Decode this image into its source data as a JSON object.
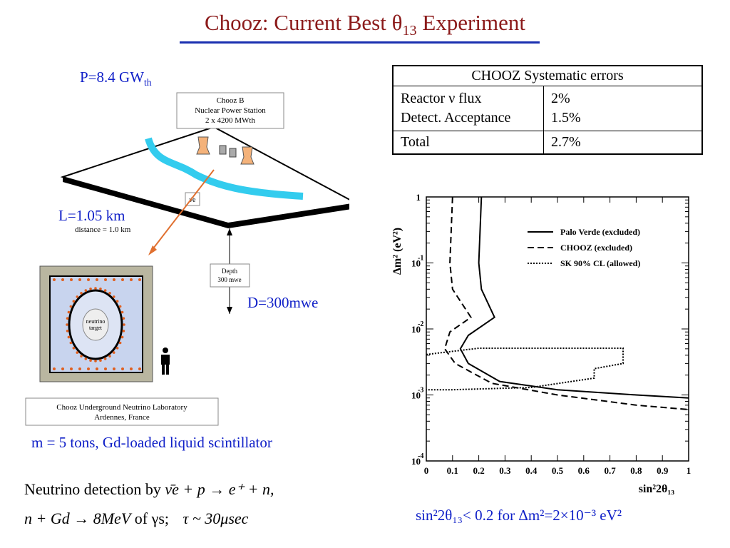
{
  "title": {
    "main": "Chooz: Current Best θ",
    "sub": "13",
    "tail": " Experiment"
  },
  "power": {
    "main": "P=8.4 GW",
    "sub": "th"
  },
  "distance": "L=1.05 km",
  "depth": "D=300mwe",
  "mass": "m = 5 tons, Gd-loaded liquid scintillator",
  "diagram": {
    "station_lines": [
      "Chooz B",
      "Nuclear Power Station",
      "2 x 4200 MWth"
    ],
    "distance_text": "distance = 1.0 km",
    "depth_lines": [
      "Depth",
      "300 mwe"
    ],
    "target_lines": [
      "neutrino",
      "target"
    ],
    "lab_lines": [
      "Chooz Underground Neutrino Laboratory",
      "Ardennes, France"
    ],
    "nubar_symbol": "ν̄e"
  },
  "table": {
    "header": "CHOOZ Systematic errors",
    "rows": [
      {
        "label": "Reactor ν flux",
        "value": "2%"
      },
      {
        "label": "Detect. Acceptance",
        "value": "1.5%"
      }
    ],
    "total": {
      "label": "Total",
      "value": "2.7%"
    }
  },
  "detection": {
    "line1_prefix": "Neutrino detection by",
    "line1_eq": "ν̄e + p → e⁺ + n,",
    "line2_eq": "n + Gd → 8MeV",
    "line2_of": "of γs;",
    "line2_tau": "τ ~ 30μsec"
  },
  "caption": "sin²2θ₁₃< 0.2 for Δm²=2×10⁻³ eV²",
  "chart_data": {
    "type": "line",
    "xlabel": "sin²2θ₁₃",
    "ylabel": "Δm² (eV²)",
    "xlim": [
      0,
      1
    ],
    "ylim": [
      0.0001,
      1
    ],
    "y_scale": "log",
    "x_ticks": [
      "0",
      "0.1",
      "0.2",
      "0.3",
      "0.4",
      "0.5",
      "0.6",
      "0.7",
      "0.8",
      "0.9",
      "1"
    ],
    "y_ticks": [
      {
        "base": "1",
        "exp": ""
      },
      {
        "base": "10",
        "exp": "-1"
      },
      {
        "base": "10",
        "exp": "-2"
      },
      {
        "base": "10",
        "exp": "-3"
      },
      {
        "base": "10",
        "exp": "-4"
      }
    ],
    "legend_position": "top-right",
    "series": [
      {
        "name": "Palo Verde (excluded)",
        "style": "solid",
        "points": [
          [
            0.21,
            1
          ],
          [
            0.2,
            0.1
          ],
          [
            0.21,
            0.04
          ],
          [
            0.26,
            0.015
          ],
          [
            0.16,
            0.008
          ],
          [
            0.13,
            0.005
          ],
          [
            0.16,
            0.003
          ],
          [
            0.28,
            0.0016
          ],
          [
            0.5,
            0.0012
          ],
          [
            0.8,
            0.001
          ],
          [
            1,
            0.0009
          ]
        ]
      },
      {
        "name": "CHOOZ (excluded)",
        "style": "dashed",
        "points": [
          [
            0.1,
            1
          ],
          [
            0.09,
            0.1
          ],
          [
            0.1,
            0.04
          ],
          [
            0.17,
            0.015
          ],
          [
            0.09,
            0.009
          ],
          [
            0.07,
            0.005
          ],
          [
            0.11,
            0.003
          ],
          [
            0.25,
            0.0015
          ],
          [
            0.5,
            0.001
          ],
          [
            0.8,
            0.0007
          ],
          [
            1,
            0.0006
          ]
        ]
      },
      {
        "name": "SK 90% CL (allowed)",
        "style": "dotted",
        "points": [
          [
            0.0,
            0.0041
          ],
          [
            0.2,
            0.0051
          ],
          [
            0.75,
            0.0051
          ],
          [
            0.75,
            0.003
          ],
          [
            0.64,
            0.0025
          ],
          [
            0.64,
            0.0018
          ],
          [
            0.4,
            0.0013
          ],
          [
            0.1,
            0.0012
          ],
          [
            0.0,
            0.0012
          ]
        ]
      }
    ]
  },
  "colors": {
    "title": "#8b1a1a",
    "accent_blue": "#1020c8",
    "river": "#33ccee",
    "beam": "#e07030",
    "detector_wall": "#b9b6a0"
  }
}
